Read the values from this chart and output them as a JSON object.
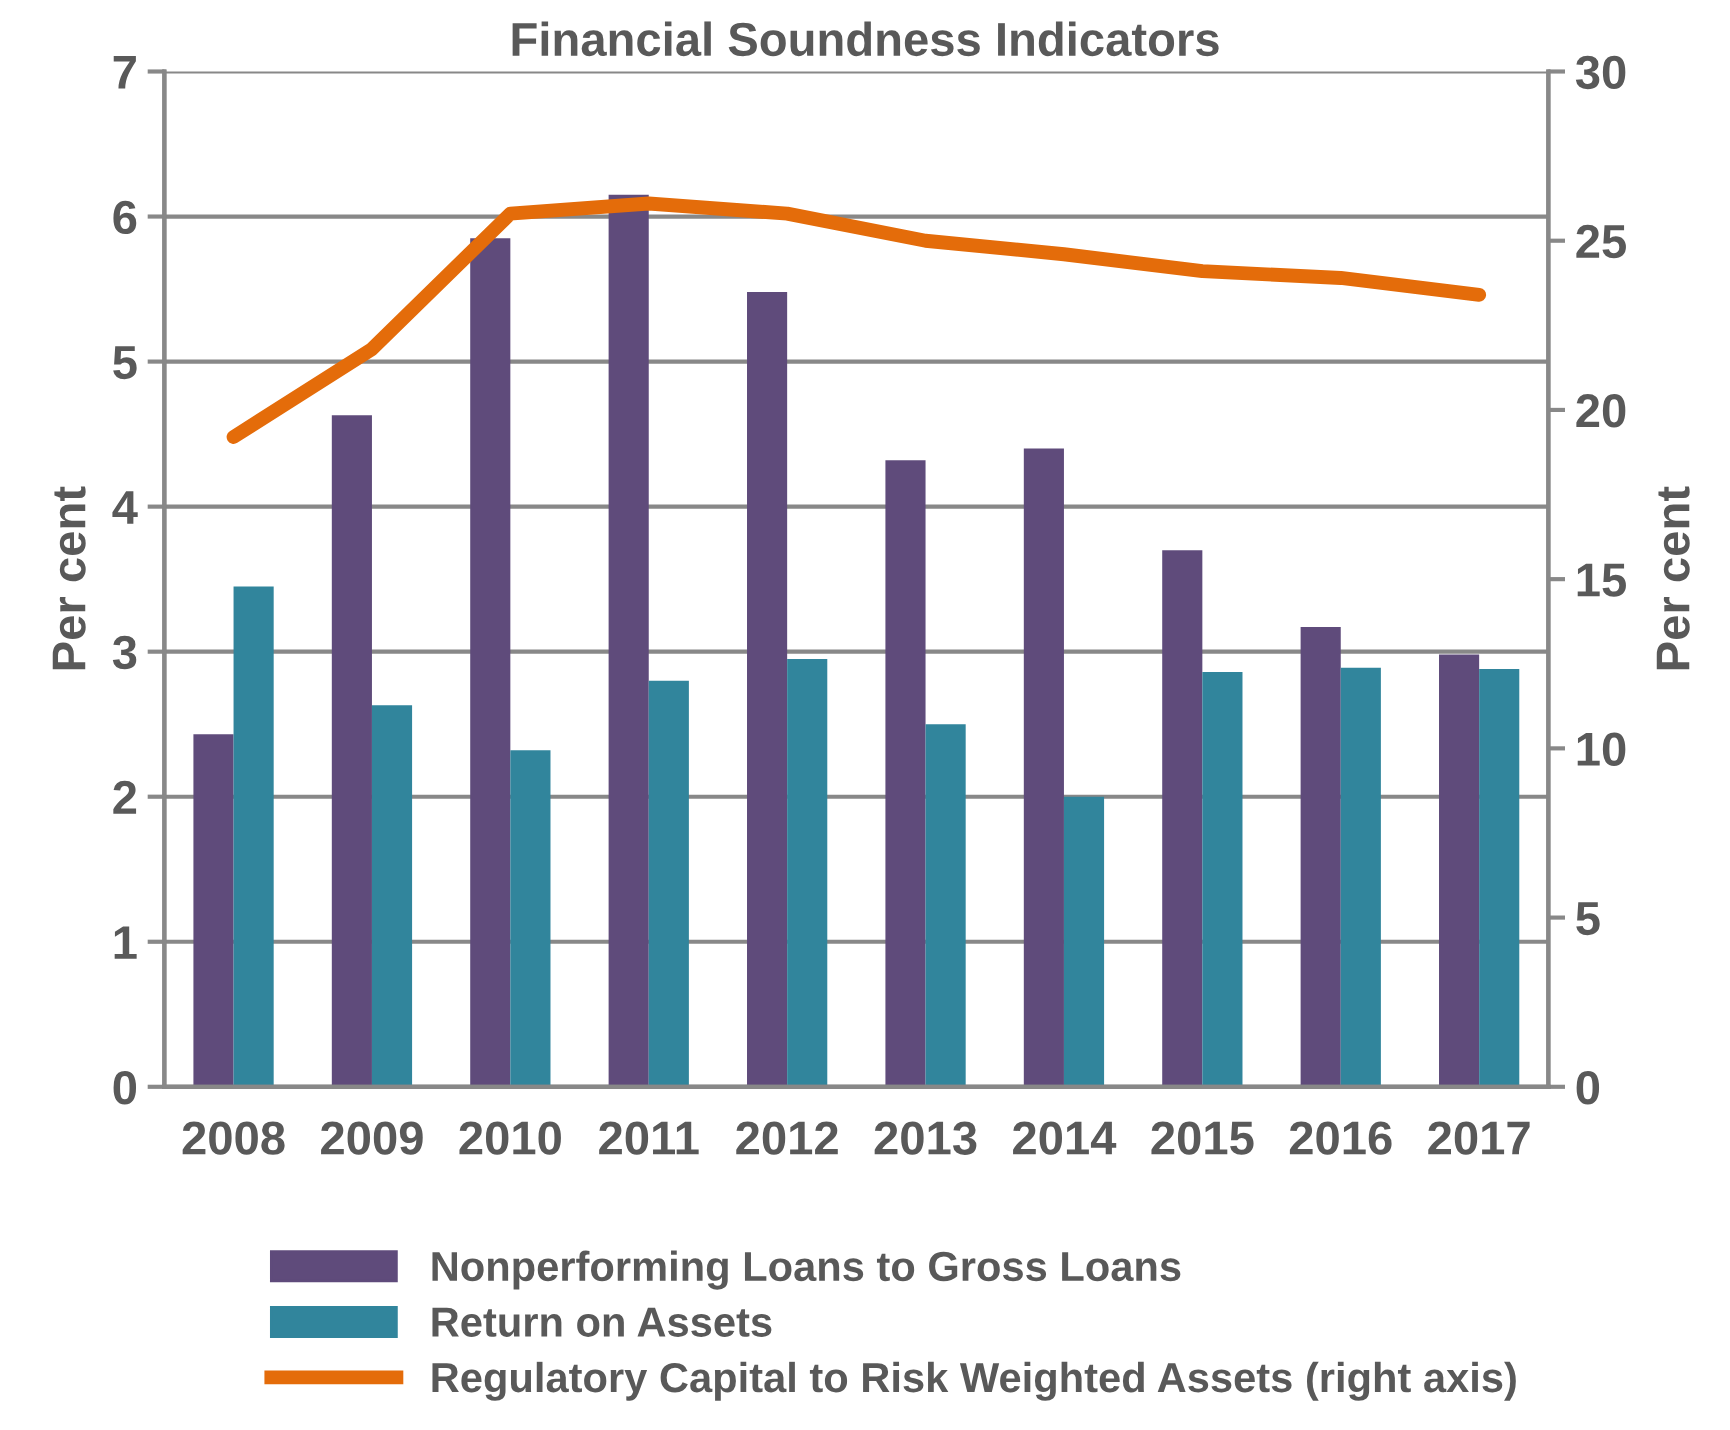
{
  "chart_data": {
    "type": "bar",
    "title": "Financial Soundness Indicators",
    "ylabel": "Per cent",
    "y2label": "Per cent",
    "categories": [
      "2008",
      "2009",
      "2010",
      "2011",
      "2012",
      "2013",
      "2014",
      "2015",
      "2016",
      "2017"
    ],
    "series": [
      {
        "name": "Nonperforming Loans to Gross Loans",
        "color": "#5f4b7b",
        "values": [
          2.43,
          4.63,
          5.85,
          6.15,
          5.48,
          4.32,
          4.4,
          3.7,
          3.17,
          2.98
        ]
      },
      {
        "name": "Return on Assets",
        "color": "#31859c",
        "values": [
          3.45,
          2.63,
          2.32,
          2.8,
          2.95,
          2.5,
          2.0,
          2.86,
          2.89,
          2.88
        ]
      },
      {
        "name": "Regulatory Capital to Risk Weighted Assets (right axis)",
        "type": "line",
        "axis": "y2",
        "color": "#e46c0a",
        "values": [
          19.2,
          21.8,
          25.8,
          26.1,
          25.8,
          25.0,
          24.6,
          24.1,
          23.9,
          23.4
        ]
      }
    ],
    "ylim": [
      0,
      7
    ],
    "yticks": [
      0,
      1,
      2,
      3,
      4,
      5,
      6,
      7
    ],
    "y2lim": [
      0,
      30
    ],
    "y2ticks": [
      0,
      5,
      10,
      15,
      20,
      25,
      30
    ],
    "grid": "y",
    "legend": "bottom",
    "marker": "none",
    "line_style": "solid"
  }
}
